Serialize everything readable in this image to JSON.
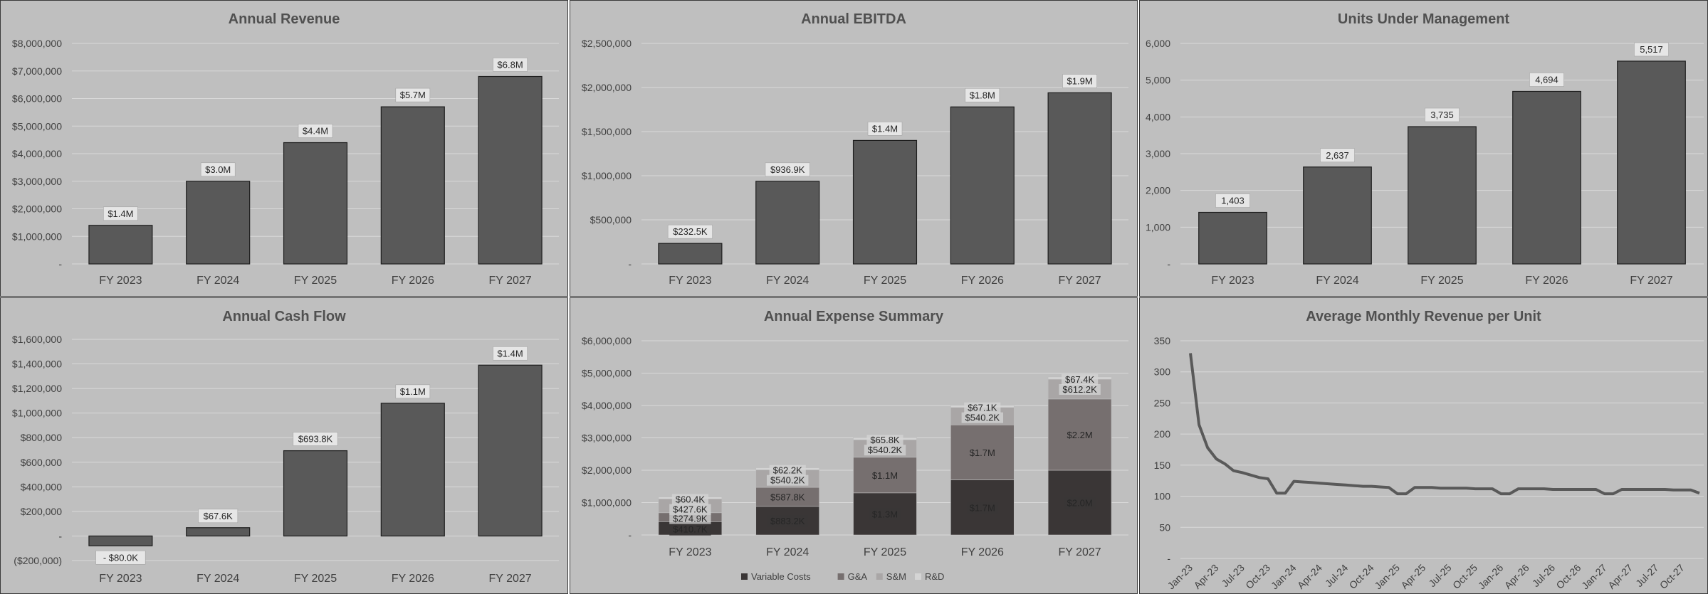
{
  "chart_data": [
    {
      "type": "bar",
      "title": "Annual Revenue",
      "categories": [
        "FY 2023",
        "FY 2024",
        "FY 2025",
        "FY 2026",
        "FY 2027"
      ],
      "values": [
        1400000,
        3000000,
        4400000,
        5700000,
        6800000
      ],
      "data_labels": [
        "$1.4M",
        "$3.0M",
        "$4.4M",
        "$5.7M",
        "$6.8M"
      ],
      "ylim": [
        0,
        8000000
      ],
      "yticks": [
        0,
        1000000,
        2000000,
        3000000,
        4000000,
        5000000,
        6000000,
        7000000,
        8000000
      ],
      "ytick_labels": [
        "-",
        "$1,000,000",
        "$2,000,000",
        "$3,000,000",
        "$4,000,000",
        "$5,000,000",
        "$6,000,000",
        "$7,000,000",
        "$8,000,000"
      ],
      "grid": true,
      "bar_color": "#595959"
    },
    {
      "type": "bar",
      "title": "Annual EBITDA",
      "categories": [
        "FY 2023",
        "FY 2024",
        "FY 2025",
        "FY 2026",
        "FY 2027"
      ],
      "values": [
        232500,
        936900,
        1400000,
        1780000,
        1940000
      ],
      "data_labels": [
        "$232.5K",
        "$936.9K",
        "$1.4M",
        "$1.8M",
        "$1.9M"
      ],
      "ylim": [
        0,
        2500000
      ],
      "yticks": [
        0,
        500000,
        1000000,
        1500000,
        2000000,
        2500000
      ],
      "ytick_labels": [
        "-",
        "$500,000",
        "$1,000,000",
        "$1,500,000",
        "$2,000,000",
        "$2,500,000"
      ],
      "grid": true,
      "bar_color": "#595959"
    },
    {
      "type": "bar",
      "title": "Units Under Management",
      "categories": [
        "FY 2023",
        "FY 2024",
        "FY 2025",
        "FY 2026",
        "FY 2027"
      ],
      "values": [
        1403,
        2637,
        3735,
        4694,
        5517
      ],
      "data_labels": [
        "1,403",
        "2,637",
        "3,735",
        "4,694",
        "5,517"
      ],
      "ylim": [
        0,
        6000
      ],
      "yticks": [
        0,
        1000,
        2000,
        3000,
        4000,
        5000,
        6000
      ],
      "ytick_labels": [
        "-",
        "1,000",
        "2,000",
        "3,000",
        "4,000",
        "5,000",
        "6,000"
      ],
      "grid": true,
      "bar_color": "#595959"
    },
    {
      "type": "bar",
      "title": "Annual Cash Flow",
      "categories": [
        "FY 2023",
        "FY 2024",
        "FY 2025",
        "FY 2026",
        "FY 2027"
      ],
      "values": [
        -80000,
        67600,
        693800,
        1080000,
        1390000
      ],
      "data_labels": [
        "- $80.0K",
        "$67.6K",
        "$693.8K",
        "$1.1M",
        "$1.4M"
      ],
      "ylim": [
        -200000,
        1600000
      ],
      "yticks": [
        -200000,
        0,
        200000,
        400000,
        600000,
        800000,
        1000000,
        1200000,
        1400000,
        1600000
      ],
      "ytick_labels": [
        "($200,000)",
        "-",
        "$200,000",
        "$400,000",
        "$600,000",
        "$800,000",
        "$1,000,000",
        "$1,200,000",
        "$1,400,000",
        "$1,600,000"
      ],
      "grid": true,
      "bar_color": "#595959"
    },
    {
      "type": "bar",
      "stacked": true,
      "title": "Annual Expense Summary",
      "categories": [
        "FY 2023",
        "FY 2024",
        "FY 2025",
        "FY 2026",
        "FY 2027"
      ],
      "series": [
        {
          "name": "Variable Costs",
          "color": "#3a3636",
          "values": [
            410700,
            883200,
            1300000,
            1700000,
            2000000
          ],
          "labels": [
            "$410.7K",
            "$883.2K",
            "$1.3M",
            "$1.7M",
            "$2.0M"
          ],
          "label_color": "#ffffff"
        },
        {
          "name": "G&A",
          "color": "#766f6f",
          "values": [
            274900,
            587800,
            1100000,
            1700000,
            2200000
          ],
          "labels": [
            "$274.9K",
            "$587.8K",
            "$1.1M",
            "$1.7M",
            "$2.2M"
          ],
          "label_color": "#3a3a3a"
        },
        {
          "name": "S&M",
          "color": "#a9a6a6",
          "values": [
            427600,
            540200,
            540200,
            540200,
            612200
          ],
          "labels": [
            "$427.6K",
            "$540.2K",
            "$540.2K",
            "$540.2K",
            "$612.2K"
          ],
          "label_color": "#262626"
        },
        {
          "name": "R&D",
          "color": "#d4d4d4",
          "values": [
            60400,
            62200,
            65800,
            67100,
            67400
          ],
          "labels": [
            "$60.4K",
            "$62.2K",
            "$65.8K",
            "$67.1K",
            "$67.4K"
          ],
          "label_color": "#262626"
        }
      ],
      "ylim": [
        0,
        6000000
      ],
      "yticks": [
        0,
        1000000,
        2000000,
        3000000,
        4000000,
        5000000,
        6000000
      ],
      "ytick_labels": [
        "-",
        "$1,000,000",
        "$2,000,000",
        "$3,000,000",
        "$4,000,000",
        "$5,000,000",
        "$6,000,000"
      ],
      "grid": true,
      "legend": "bottom"
    },
    {
      "type": "line",
      "title": "Average Monthly Revenue per Unit",
      "x": [
        "Jan-23",
        "Feb-23",
        "Mar-23",
        "Apr-23",
        "May-23",
        "Jun-23",
        "Jul-23",
        "Aug-23",
        "Sep-23",
        "Oct-23",
        "Nov-23",
        "Dec-23",
        "Jan-24",
        "Feb-24",
        "Mar-24",
        "Apr-24",
        "May-24",
        "Jun-24",
        "Jul-24",
        "Aug-24",
        "Sep-24",
        "Oct-24",
        "Nov-24",
        "Dec-24",
        "Jan-25",
        "Feb-25",
        "Mar-25",
        "Apr-25",
        "May-25",
        "Jun-25",
        "Jul-25",
        "Aug-25",
        "Sep-25",
        "Oct-25",
        "Nov-25",
        "Dec-25",
        "Jan-26",
        "Feb-26",
        "Mar-26",
        "Apr-26",
        "May-26",
        "Jun-26",
        "Jul-26",
        "Aug-26",
        "Sep-26",
        "Oct-26",
        "Nov-26",
        "Dec-26",
        "Jan-27",
        "Feb-27",
        "Mar-27",
        "Apr-27",
        "May-27",
        "Jun-27",
        "Jul-27",
        "Aug-27",
        "Sep-27",
        "Oct-27",
        "Nov-27",
        "Dec-27"
      ],
      "x_tick_labels": [
        "Jan-23",
        "Apr-23",
        "Jul-23",
        "Oct-23",
        "Jan-24",
        "Apr-24",
        "Jul-24",
        "Oct-24",
        "Jan-25",
        "Apr-25",
        "Jul-25",
        "Oct-25",
        "Jan-26",
        "Apr-26",
        "Jul-26",
        "Oct-26",
        "Jan-27",
        "Apr-27",
        "Jul-27",
        "Oct-27"
      ],
      "series": [
        {
          "values": [
            330,
            215,
            178,
            160,
            152,
            141,
            138,
            134,
            130,
            128,
            105,
            105,
            124,
            123,
            122,
            121,
            120,
            119,
            118,
            117,
            116,
            116,
            115,
            114,
            104,
            104,
            114,
            114,
            114,
            113,
            113,
            113,
            113,
            112,
            112,
            112,
            104,
            104,
            112,
            112,
            112,
            112,
            111,
            111,
            111,
            111,
            111,
            111,
            104,
            104,
            111,
            111,
            111,
            111,
            111,
            111,
            110,
            110,
            110,
            105
          ],
          "color": "#595959"
        }
      ],
      "ylim": [
        0,
        350
      ],
      "yticks": [
        0,
        50,
        100,
        150,
        200,
        250,
        300,
        350
      ],
      "ytick_labels": [
        "-",
        "50",
        "100",
        "150",
        "200",
        "250",
        "300",
        "350"
      ],
      "grid": true
    }
  ]
}
